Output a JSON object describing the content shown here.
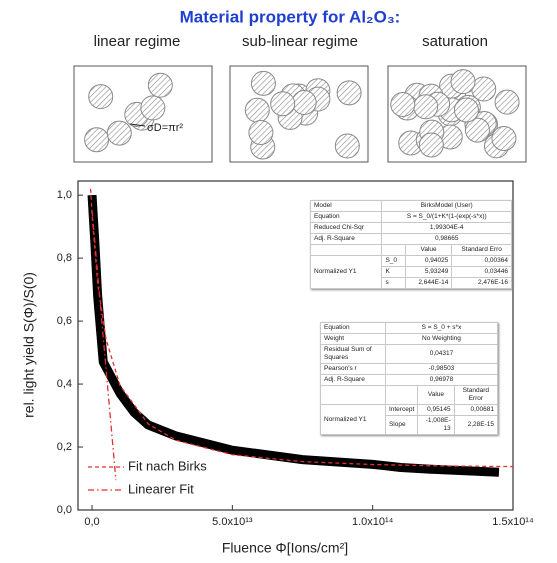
{
  "chart_data": {
    "type": "line",
    "title": "Material property for Al₂O₃:",
    "regimes": [
      "linear regime",
      "sub-linear regime",
      "saturation"
    ],
    "annotation": "σD=πr²",
    "xlabel": "Fluence  Φ[Ions/cm²]",
    "ylabel": "rel. light yield S(Φ)/S(0)",
    "xlim": [
      -5000000000000.0,
      150000000000000.0
    ],
    "ylim": [
      0,
      1.045
    ],
    "xticks": [
      {
        "value": 0,
        "label": "0,0"
      },
      {
        "value": 50000000000000.0,
        "label": "5.0x10¹³"
      },
      {
        "value": 100000000000000.0,
        "label": "1.0x10¹⁴"
      },
      {
        "value": 150000000000000.0,
        "label": "1.5x10¹⁴"
      }
    ],
    "yticks": [
      {
        "value": 0,
        "label": "0,0"
      },
      {
        "value": 0.2,
        "label": "0,2"
      },
      {
        "value": 0.4,
        "label": "0,4"
      },
      {
        "value": 0.6,
        "label": "0,6"
      },
      {
        "value": 0.8,
        "label": "0,8"
      },
      {
        "value": 1,
        "label": "1,0"
      }
    ],
    "legend": "lower left",
    "series": [
      {
        "color": "#000000",
        "line_style": "solid",
        "x": [
          0,
          1000000000000.0,
          2000000000000.0,
          4000000000000.0,
          7000000000000.0,
          10000000000000.0,
          15000000000000.0,
          20000000000000.0,
          30000000000000.0,
          50000000000000.0,
          75000000000000.0,
          100000000000000.0,
          110000000000000.0,
          120000000000000.0,
          145000000000000.0
        ],
        "values": [
          1.0,
          0.85,
          0.68,
          0.47,
          0.42,
          0.37,
          0.31,
          0.27,
          0.235,
          0.19,
          0.16,
          0.145,
          0.135,
          0.13,
          0.12
        ]
      },
      {
        "name": "Fit nach Birks",
        "color": "#e03030",
        "line_style": "dashed",
        "x": [
          -500000000000.0,
          0,
          2000000000000.0,
          5000000000000.0,
          10000000000000.0,
          20000000000000.0,
          30000000000000.0,
          50000000000000.0,
          75000000000000.0,
          100000000000000.0,
          125000000000000.0,
          150000000000000.0
        ],
        "values": [
          1.02,
          0.94,
          0.72,
          0.542,
          0.395,
          0.2735,
          0.2212,
          0.1757,
          0.1537,
          0.1444,
          0.1399,
          0.1379
        ]
      },
      {
        "name": "Linearer Fit",
        "color": "#e03030",
        "line_style": "dashdot",
        "x": [
          0,
          8500000000000.0
        ],
        "values": [
          0.95145,
          0.0946
        ]
      }
    ],
    "tables": [
      {
        "rows": [
          [
            "Model",
            "BirksModel (User)"
          ],
          [
            "Equation",
            "S = S_0/(1+K*(1-(exp(-s*x))"
          ],
          [
            "Reduced Chi-Sqr",
            "1,99304E-4"
          ],
          [
            "Adj. R-Square",
            "0,98665"
          ]
        ],
        "param_header": [
          "Value",
          "Standard Erro"
        ],
        "group": "Normalized Y1",
        "params": [
          [
            "S_0",
            "0,94025",
            "0,00364"
          ],
          [
            "K",
            "5,93249",
            "0,03446"
          ],
          [
            "s",
            "2,644E-14",
            "2,476E-16"
          ]
        ]
      },
      {
        "rows": [
          [
            "Equation",
            "S = S_0 + s*x"
          ],
          [
            "Weight",
            "No Weighting"
          ],
          [
            "Residual Sum of Squares",
            "0,04317"
          ],
          [
            "Pearson's r",
            "-0,98503"
          ],
          [
            "Adj. R-Square",
            "0,96978"
          ]
        ],
        "param_header": [
          "Value",
          "Standard Error"
        ],
        "group": "Normalized Y1",
        "params": [
          [
            "Intercept",
            "0,95145",
            "0,00681"
          ],
          [
            "Slope",
            "-1,008E-13",
            "2,28E-15"
          ]
        ]
      }
    ]
  }
}
